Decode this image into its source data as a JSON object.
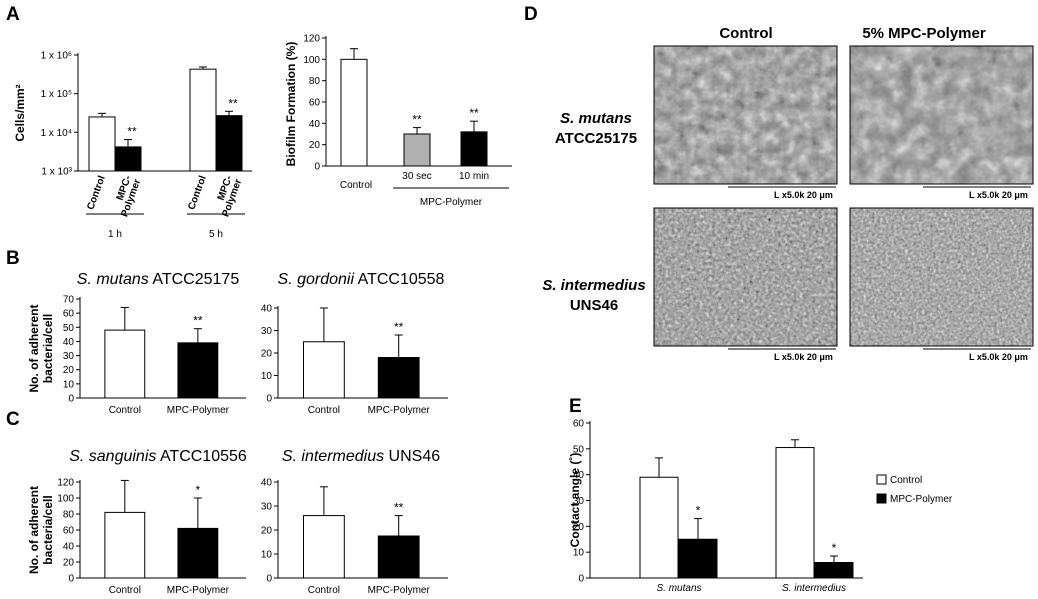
{
  "panel_letters": {
    "a": "A",
    "b": "B",
    "c": "C",
    "d": "D",
    "e": "E"
  },
  "chart_data": [
    {
      "id": "A1",
      "type": "bar",
      "scale": "log",
      "ylabel": "Cells/mm²",
      "yticks": [
        "1 x 10³",
        "1 x 10⁴",
        "1 x 10⁵",
        "1 x 10⁶"
      ],
      "ylim_log10": [
        3,
        6
      ],
      "groups": [
        {
          "label": "1 h",
          "bars": [
            {
              "label": "Control",
              "value": 25000,
              "err_top": 31000,
              "fill": "#ffffff",
              "sig": ""
            },
            {
              "label": "MPC-Polymer",
              "value": 4200,
              "err_top": 6500,
              "fill": "#000000",
              "sig": "**"
            }
          ]
        },
        {
          "label": "5 h",
          "bars": [
            {
              "label": "Control",
              "value": 430000,
              "err_top": 490000,
              "fill": "#ffffff",
              "sig": ""
            },
            {
              "label": "MPC-Polymer",
              "value": 27000,
              "err_top": 35000,
              "fill": "#000000",
              "sig": "**"
            }
          ]
        }
      ]
    },
    {
      "id": "A2",
      "type": "bar",
      "ylabel": "Biofilm Formation (%)",
      "yticks": [
        "0",
        "20",
        "40",
        "60",
        "80",
        "100",
        "120"
      ],
      "ylim": [
        0,
        120
      ],
      "categories": [
        "Control",
        "30 sec",
        "10 min"
      ],
      "values": [
        100,
        30,
        32
      ],
      "errors": [
        10,
        6,
        10
      ],
      "fills": [
        "#ffffff",
        "#b0b0b0",
        "#000000"
      ],
      "sig": [
        "",
        "**",
        "**"
      ],
      "group_label": "MPC-Polymer"
    },
    {
      "id": "B1",
      "type": "bar",
      "title_italic": "S. mutans",
      "title_rest": " ATCC25175",
      "ylabel_line1": "No. of adherent",
      "ylabel_line2": "bacteria/cell",
      "yticks": [
        "0",
        "10",
        "20",
        "30",
        "40",
        "50",
        "60",
        "70"
      ],
      "ylim": [
        0,
        70
      ],
      "categories": [
        "Control",
        "MPC-Polymer"
      ],
      "values": [
        48,
        39
      ],
      "errors": [
        16,
        10
      ],
      "fills": [
        "#ffffff",
        "#000000"
      ],
      "sig": [
        "",
        "**"
      ]
    },
    {
      "id": "B2",
      "type": "bar",
      "title_italic": "S. gordonii",
      "title_rest": " ATCC10558",
      "yticks": [
        "0",
        "10",
        "20",
        "30",
        "40"
      ],
      "ylim": [
        0,
        40
      ],
      "categories": [
        "Control",
        "MPC-Polymer"
      ],
      "values": [
        25,
        18
      ],
      "errors": [
        15,
        10
      ],
      "fills": [
        "#ffffff",
        "#000000"
      ],
      "sig": [
        "",
        "**"
      ]
    },
    {
      "id": "C1",
      "type": "bar",
      "title_italic": "S. sanguinis",
      "title_rest": " ATCC10556",
      "ylabel_line1": "No. of adherent",
      "ylabel_line2": "bacteria/cell",
      "yticks": [
        "0",
        "20",
        "40",
        "60",
        "80",
        "100",
        "120"
      ],
      "ylim": [
        0,
        120
      ],
      "categories": [
        "Control",
        "MPC-Polymer"
      ],
      "values": [
        82,
        62
      ],
      "errors": [
        40,
        38
      ],
      "fills": [
        "#ffffff",
        "#000000"
      ],
      "sig": [
        "",
        "*"
      ]
    },
    {
      "id": "C2",
      "type": "bar",
      "title_italic": "S. intermedius",
      "title_rest": " UNS46",
      "yticks": [
        "0",
        "10",
        "20",
        "30",
        "40"
      ],
      "ylim": [
        0,
        40
      ],
      "categories": [
        "Control",
        "MPC-Polymer"
      ],
      "values": [
        26,
        17.5
      ],
      "errors": [
        12,
        8.5
      ],
      "fills": [
        "#ffffff",
        "#000000"
      ],
      "sig": [
        "",
        "**"
      ]
    },
    {
      "id": "E",
      "type": "bar",
      "ylabel": "Contact angle (˚)",
      "yticks": [
        "0",
        "10",
        "20",
        "30",
        "40",
        "50",
        "60"
      ],
      "ylim": [
        0,
        60
      ],
      "categories": [
        "S. mutans",
        "S. intermedius"
      ],
      "series": [
        {
          "name": "Control",
          "values": [
            39,
            50.5
          ],
          "errors": [
            7.5,
            3
          ],
          "fill": "#ffffff",
          "sig": [
            "",
            ""
          ]
        },
        {
          "name": "MPC-Polymer",
          "values": [
            15,
            6
          ],
          "errors": [
            8,
            2.5
          ],
          "fill": "#000000",
          "sig": [
            "*",
            "*"
          ]
        }
      ],
      "legend": "right"
    }
  ],
  "sem": {
    "col_headers": [
      "Control",
      "5% MPC-Polymer"
    ],
    "rows": [
      {
        "italic": "S. mutans",
        "strain": "ATCC25175"
      },
      {
        "italic": "S. intermedius",
        "strain": "UNS46"
      }
    ],
    "scale_label": "L x5.0k 20 μm"
  }
}
